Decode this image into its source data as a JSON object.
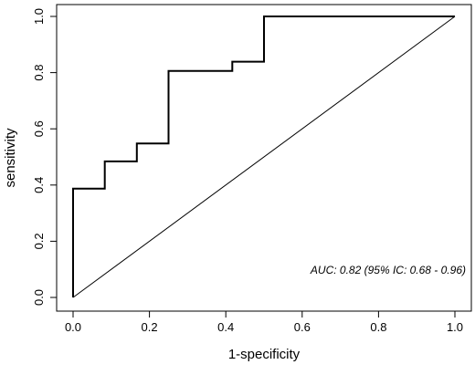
{
  "chart_data": {
    "type": "line",
    "title": "",
    "xlabel": "1-specificity",
    "ylabel": "sensitivity",
    "xlim": [
      0,
      1
    ],
    "ylim": [
      0,
      1
    ],
    "x_ticks": [
      "0.0",
      "0.2",
      "0.4",
      "0.6",
      "0.8",
      "1.0"
    ],
    "y_ticks": [
      "0.0",
      "0.2",
      "0.4",
      "0.6",
      "0.8",
      "1.0"
    ],
    "grid": false,
    "annotation": "AUC: 0.82 (95% IC: 0.68 - 0.96)",
    "series": [
      {
        "x": [
          0,
          0,
          0.083,
          0.083,
          0.167,
          0.167,
          0.25,
          0.25,
          0.417,
          0.417,
          0.5,
          0.5,
          1.0
        ],
        "y": [
          0,
          0.387,
          0.387,
          0.484,
          0.484,
          0.548,
          0.548,
          0.806,
          0.806,
          0.839,
          0.839,
          1.0,
          1.0
        ],
        "color": "#000000",
        "style": "step"
      },
      {
        "x": [
          0,
          1
        ],
        "y": [
          0,
          1
        ],
        "color": "#000000",
        "style": "reference-diagonal"
      }
    ]
  }
}
